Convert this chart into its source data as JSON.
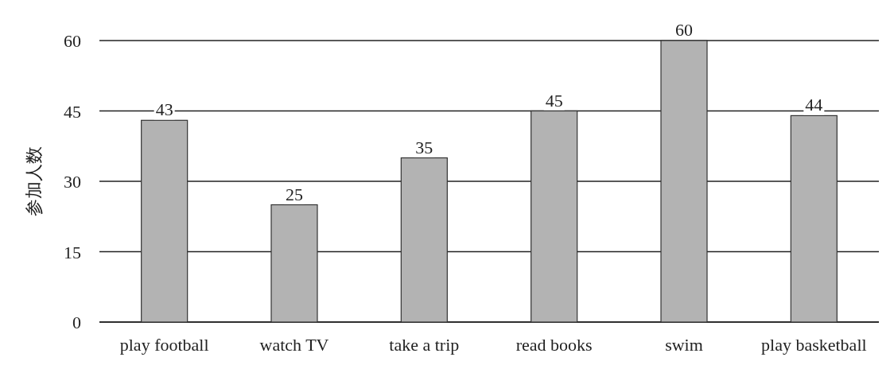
{
  "chart_data": {
    "type": "bar",
    "ylabel": "参加人数",
    "categories": [
      "play football",
      "watch TV",
      "take a trip",
      "read books",
      "swim",
      "play basketball"
    ],
    "values": [
      43,
      25,
      35,
      45,
      60,
      44
    ],
    "color": "#b3b3b3",
    "ylim": [
      0,
      60
    ],
    "yticks": [
      0,
      15,
      30,
      45,
      60
    ],
    "grid": "y",
    "data_labels": true
  }
}
